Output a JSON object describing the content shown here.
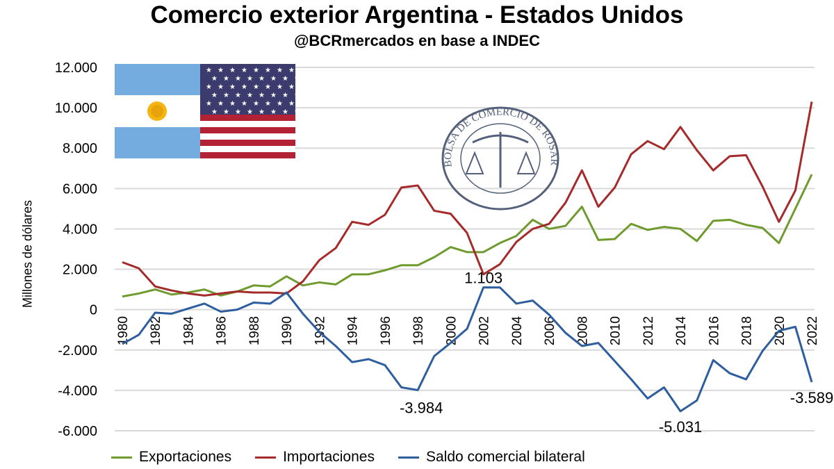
{
  "title": "Comercio exterior Argentina - Estados Unidos",
  "subtitle": "@BCRmercados en base a INDEC",
  "logo_text": "BOLSA DE COMERCIO DE ROSARIO",
  "chart_data": {
    "type": "line",
    "ylabel": "Millones de dólares",
    "xlabel": "",
    "ylim": [
      -6000,
      12000
    ],
    "yticks": [
      -6000,
      -4000,
      -2000,
      0,
      2000,
      4000,
      6000,
      8000,
      10000,
      12000
    ],
    "ytick_labels": [
      "-6.000",
      "-4.000",
      "-2.000",
      "0",
      "2.000",
      "4.000",
      "6.000",
      "8.000",
      "10.000",
      "12.000"
    ],
    "xtick_labels": [
      "1980",
      "1982",
      "1984",
      "1986",
      "1988",
      "1990",
      "1992",
      "1994",
      "1996",
      "1998",
      "2000",
      "2002",
      "2004",
      "2006",
      "2008",
      "2010",
      "2012",
      "2014",
      "2016",
      "2018",
      "2020",
      "2022"
    ],
    "grid": true,
    "legend_position": "bottom",
    "x": [
      1980,
      1981,
      1982,
      1983,
      1984,
      1985,
      1986,
      1987,
      1988,
      1989,
      1990,
      1991,
      1992,
      1993,
      1994,
      1995,
      1996,
      1997,
      1998,
      1999,
      2000,
      2001,
      2002,
      2003,
      2004,
      2005,
      2006,
      2007,
      2008,
      2009,
      2010,
      2011,
      2012,
      2013,
      2014,
      2015,
      2016,
      2017,
      2018,
      2019,
      2020,
      2021,
      2022
    ],
    "series": [
      {
        "name": "Exportaciones",
        "color": "#6e9a2e",
        "values": [
          650,
          800,
          1000,
          750,
          850,
          1000,
          700,
          900,
          1200,
          1150,
          1650,
          1200,
          1350,
          1250,
          1750,
          1750,
          1950,
          2200,
          2200,
          2600,
          3100,
          2850,
          2850,
          3300,
          3650,
          4450,
          4000,
          4150,
          5100,
          3450,
          3500,
          4250,
          3950,
          4100,
          4000,
          3400,
          4400,
          4450,
          4200,
          4050,
          3300,
          5000,
          6700
        ]
      },
      {
        "name": "Importaciones",
        "color": "#a52a2a",
        "values": [
          2350,
          2050,
          1150,
          950,
          800,
          700,
          800,
          900,
          850,
          850,
          800,
          1400,
          2450,
          3050,
          4350,
          4200,
          4700,
          6050,
          6150,
          4900,
          4750,
          3800,
          1750,
          2250,
          3350,
          4000,
          4250,
          5300,
          6900,
          5100,
          6050,
          7700,
          8350,
          7950,
          9050,
          7900,
          6900,
          7600,
          7650,
          6100,
          4350,
          5900,
          10300
        ]
      },
      {
        "name": "Saldo comercial bilateral",
        "color": "#2e5e9e",
        "values": [
          -1700,
          -1250,
          -150,
          -200,
          50,
          300,
          -100,
          0,
          350,
          300,
          850,
          -200,
          -1100,
          -1800,
          -2600,
          -2450,
          -2750,
          -3850,
          -3984,
          -2300,
          -1650,
          -950,
          1103,
          1100,
          300,
          450,
          -250,
          -1150,
          -1800,
          -1650,
          -2550,
          -3450,
          -4400,
          -3850,
          -5031,
          -4500,
          -2500,
          -3150,
          -3450,
          -2050,
          -1050,
          -850,
          -3589
        ]
      }
    ],
    "annotations": [
      {
        "x": 2002,
        "y": 1103,
        "text": "1.103"
      },
      {
        "x": 1998,
        "y": -3984,
        "text": "-3.984"
      },
      {
        "x": 2014,
        "y": -5031,
        "text": "-5.031"
      },
      {
        "x": 2022,
        "y": -3589,
        "text": "-3.589"
      }
    ]
  }
}
